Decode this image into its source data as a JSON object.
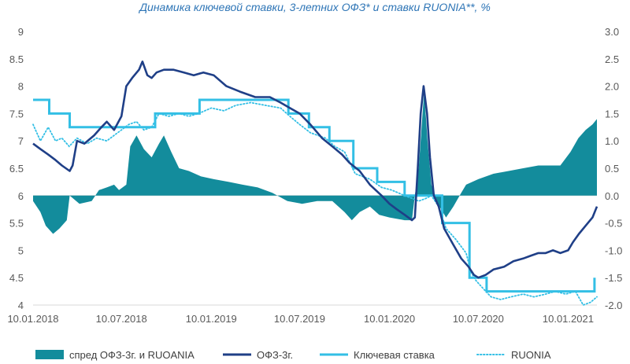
{
  "chart_data": {
    "type": "line",
    "title": "Динамика ключевой ставки, 3-летних ОФЗ* и ставки RUONIA**, %",
    "x_ticks": [
      "10.01.2018",
      "10.07.2018",
      "10.01.2019",
      "10.07.2019",
      "10.01.2020",
      "10.07.2020",
      "10.01.2021"
    ],
    "x_range": [
      "2018-01-10",
      "2021-03-10"
    ],
    "y_left": {
      "ticks": [
        "9",
        "8.5",
        "8",
        "7.5",
        "7",
        "6.5",
        "6",
        "5.5",
        "5",
        "4.5",
        "4"
      ],
      "range": [
        4,
        9
      ]
    },
    "y_right": {
      "ticks": [
        "3.0",
        "2.5",
        "2.0",
        "1.5",
        "1.0",
        "0.5",
        "0.0",
        "-0.5",
        "-1.0",
        "-1.5",
        "-2.0"
      ],
      "range": [
        -2,
        3
      ]
    },
    "legend_position": "bottom",
    "colors": {
      "spread": "#138c9c",
      "ofz": "#1f3f87",
      "key_rate": "#33bfe5",
      "ruonia": "#33bfe5"
    },
    "series": [
      {
        "name": "спред ОФЗ-3г. и RUOANIA",
        "axis": "right",
        "style": "area",
        "points": [
          [
            "2018-01-10",
            -0.1
          ],
          [
            "2018-01-25",
            -0.3
          ],
          [
            "2018-02-05",
            -0.55
          ],
          [
            "2018-02-20",
            -0.7
          ],
          [
            "2018-03-05",
            -0.6
          ],
          [
            "2018-03-20",
            -0.45
          ],
          [
            "2018-03-26",
            0.0
          ],
          [
            "2018-04-15",
            -0.15
          ],
          [
            "2018-05-10",
            -0.1
          ],
          [
            "2018-05-25",
            0.1
          ],
          [
            "2018-06-10",
            0.15
          ],
          [
            "2018-06-25",
            0.2
          ],
          [
            "2018-07-05",
            0.1
          ],
          [
            "2018-07-20",
            0.2
          ],
          [
            "2018-07-28",
            0.9
          ],
          [
            "2018-08-10",
            1.1
          ],
          [
            "2018-08-25",
            0.85
          ],
          [
            "2018-09-10",
            0.7
          ],
          [
            "2018-09-25",
            0.95
          ],
          [
            "2018-10-05",
            1.1
          ],
          [
            "2018-10-20",
            0.8
          ],
          [
            "2018-11-05",
            0.5
          ],
          [
            "2018-11-25",
            0.45
          ],
          [
            "2018-12-20",
            0.35
          ],
          [
            "2019-01-15",
            0.3
          ],
          [
            "2019-02-15",
            0.25
          ],
          [
            "2019-03-15",
            0.2
          ],
          [
            "2019-04-15",
            0.15
          ],
          [
            "2019-05-15",
            0.05
          ],
          [
            "2019-06-15",
            -0.1
          ],
          [
            "2019-07-15",
            -0.15
          ],
          [
            "2019-08-15",
            -0.1
          ],
          [
            "2019-09-15",
            -0.1
          ],
          [
            "2019-10-10",
            -0.3
          ],
          [
            "2019-10-25",
            -0.45
          ],
          [
            "2019-11-10",
            -0.3
          ],
          [
            "2019-12-01",
            -0.2
          ],
          [
            "2019-12-20",
            -0.35
          ],
          [
            "2020-01-10",
            -0.4
          ],
          [
            "2020-02-10",
            -0.45
          ],
          [
            "2020-02-25",
            -0.45
          ],
          [
            "2020-03-02",
            0.0
          ],
          [
            "2020-03-10",
            0.5
          ],
          [
            "2020-03-17",
            1.4
          ],
          [
            "2020-03-21",
            1.9
          ],
          [
            "2020-03-28",
            1.0
          ],
          [
            "2020-04-05",
            0.2
          ],
          [
            "2020-04-15",
            -0.1
          ],
          [
            "2020-04-25",
            -0.25
          ],
          [
            "2020-05-05",
            -0.4
          ],
          [
            "2020-05-20",
            -0.2
          ],
          [
            "2020-06-05",
            0.05
          ],
          [
            "2020-06-15",
            0.2
          ],
          [
            "2020-07-10",
            0.3
          ],
          [
            "2020-08-10",
            0.4
          ],
          [
            "2020-09-10",
            0.45
          ],
          [
            "2020-10-10",
            0.5
          ],
          [
            "2020-11-10",
            0.55
          ],
          [
            "2020-12-10",
            0.55
          ],
          [
            "2020-12-25",
            0.55
          ],
          [
            "2021-01-15",
            0.8
          ],
          [
            "2021-01-31",
            1.05
          ],
          [
            "2021-02-15",
            1.2
          ],
          [
            "2021-03-01",
            1.3
          ],
          [
            "2021-03-10",
            1.4
          ]
        ]
      },
      {
        "name": "ОФЗ-3г.",
        "axis": "left",
        "style": "line",
        "points": [
          [
            "2018-01-10",
            6.95
          ],
          [
            "2018-01-25",
            6.85
          ],
          [
            "2018-02-10",
            6.75
          ],
          [
            "2018-02-25",
            6.65
          ],
          [
            "2018-03-10",
            6.55
          ],
          [
            "2018-03-26",
            6.45
          ],
          [
            "2018-04-01",
            6.55
          ],
          [
            "2018-04-10",
            7.0
          ],
          [
            "2018-04-25",
            6.95
          ],
          [
            "2018-05-15",
            7.1
          ],
          [
            "2018-05-30",
            7.25
          ],
          [
            "2018-06-10",
            7.35
          ],
          [
            "2018-06-25",
            7.2
          ],
          [
            "2018-07-10",
            7.45
          ],
          [
            "2018-07-20",
            8.0
          ],
          [
            "2018-08-01",
            8.15
          ],
          [
            "2018-08-15",
            8.3
          ],
          [
            "2018-08-22",
            8.45
          ],
          [
            "2018-09-01",
            8.2
          ],
          [
            "2018-09-10",
            8.15
          ],
          [
            "2018-09-20",
            8.25
          ],
          [
            "2018-10-05",
            8.3
          ],
          [
            "2018-10-25",
            8.3
          ],
          [
            "2018-11-15",
            8.25
          ],
          [
            "2018-12-05",
            8.2
          ],
          [
            "2018-12-25",
            8.25
          ],
          [
            "2019-01-15",
            8.2
          ],
          [
            "2019-02-10",
            8.0
          ],
          [
            "2019-03-10",
            7.9
          ],
          [
            "2019-04-10",
            7.8
          ],
          [
            "2019-05-10",
            7.8
          ],
          [
            "2019-06-01",
            7.7
          ],
          [
            "2019-06-20",
            7.6
          ],
          [
            "2019-07-10",
            7.5
          ],
          [
            "2019-08-01",
            7.3
          ],
          [
            "2019-08-25",
            7.05
          ],
          [
            "2019-09-15",
            6.9
          ],
          [
            "2019-10-05",
            6.75
          ],
          [
            "2019-10-20",
            6.6
          ],
          [
            "2019-11-10",
            6.45
          ],
          [
            "2019-12-01",
            6.2
          ],
          [
            "2019-12-25",
            6.0
          ],
          [
            "2020-01-10",
            5.85
          ],
          [
            "2020-01-25",
            5.75
          ],
          [
            "2020-02-10",
            5.65
          ],
          [
            "2020-02-25",
            5.55
          ],
          [
            "2020-03-02",
            5.6
          ],
          [
            "2020-03-08",
            6.5
          ],
          [
            "2020-03-14",
            7.5
          ],
          [
            "2020-03-20",
            8.0
          ],
          [
            "2020-03-27",
            7.5
          ],
          [
            "2020-04-02",
            6.7
          ],
          [
            "2020-04-10",
            6.0
          ],
          [
            "2020-04-20",
            5.8
          ],
          [
            "2020-05-01",
            5.4
          ],
          [
            "2020-05-20",
            5.1
          ],
          [
            "2020-06-05",
            4.85
          ],
          [
            "2020-06-20",
            4.7
          ],
          [
            "2020-07-01",
            4.55
          ],
          [
            "2020-07-10",
            4.5
          ],
          [
            "2020-07-25",
            4.55
          ],
          [
            "2020-08-10",
            4.65
          ],
          [
            "2020-09-01",
            4.7
          ],
          [
            "2020-09-20",
            4.8
          ],
          [
            "2020-10-10",
            4.85
          ],
          [
            "2020-10-25",
            4.9
          ],
          [
            "2020-11-10",
            4.95
          ],
          [
            "2020-11-25",
            4.95
          ],
          [
            "2020-12-10",
            5.0
          ],
          [
            "2020-12-25",
            4.95
          ],
          [
            "2021-01-10",
            5.0
          ],
          [
            "2021-01-20",
            5.15
          ],
          [
            "2021-02-01",
            5.3
          ],
          [
            "2021-02-15",
            5.45
          ],
          [
            "2021-03-01",
            5.6
          ],
          [
            "2021-03-10",
            5.8
          ]
        ]
      },
      {
        "name": "Ключевая ставка",
        "axis": "left",
        "style": "step",
        "points": [
          [
            "2018-01-10",
            7.75
          ],
          [
            "2018-02-12",
            7.5
          ],
          [
            "2018-03-26",
            7.25
          ],
          [
            "2018-09-17",
            7.5
          ],
          [
            "2018-12-17",
            7.75
          ],
          [
            "2019-06-17",
            7.5
          ],
          [
            "2019-07-29",
            7.25
          ],
          [
            "2019-09-09",
            7.0
          ],
          [
            "2019-10-28",
            6.5
          ],
          [
            "2019-12-16",
            6.25
          ],
          [
            "2020-02-10",
            6.0
          ],
          [
            "2020-04-27",
            5.5
          ],
          [
            "2020-06-22",
            4.5
          ],
          [
            "2020-07-27",
            4.25
          ],
          [
            "2021-03-03",
            4.25
          ],
          [
            "2021-03-05",
            4.5
          ]
        ]
      },
      {
        "name": "RUONIA",
        "axis": "left",
        "style": "dotted",
        "points": [
          [
            "2018-01-10",
            7.3
          ],
          [
            "2018-01-25",
            7.0
          ],
          [
            "2018-02-10",
            7.25
          ],
          [
            "2018-02-25",
            7.0
          ],
          [
            "2018-03-10",
            7.05
          ],
          [
            "2018-03-25",
            6.9
          ],
          [
            "2018-04-10",
            7.05
          ],
          [
            "2018-05-01",
            6.95
          ],
          [
            "2018-05-20",
            7.05
          ],
          [
            "2018-06-10",
            7.0
          ],
          [
            "2018-06-25",
            7.1
          ],
          [
            "2018-07-10",
            7.2
          ],
          [
            "2018-07-25",
            7.3
          ],
          [
            "2018-08-10",
            7.35
          ],
          [
            "2018-08-25",
            7.2
          ],
          [
            "2018-09-10",
            7.25
          ],
          [
            "2018-09-25",
            7.5
          ],
          [
            "2018-10-15",
            7.45
          ],
          [
            "2018-11-05",
            7.5
          ],
          [
            "2018-11-25",
            7.45
          ],
          [
            "2018-12-15",
            7.5
          ],
          [
            "2019-01-10",
            7.6
          ],
          [
            "2019-02-05",
            7.55
          ],
          [
            "2019-03-01",
            7.65
          ],
          [
            "2019-04-01",
            7.7
          ],
          [
            "2019-05-01",
            7.65
          ],
          [
            "2019-06-01",
            7.6
          ],
          [
            "2019-06-20",
            7.45
          ],
          [
            "2019-07-10",
            7.3
          ],
          [
            "2019-08-01",
            7.15
          ],
          [
            "2019-09-01",
            7.05
          ],
          [
            "2019-09-20",
            6.9
          ],
          [
            "2019-10-10",
            6.8
          ],
          [
            "2019-11-01",
            6.4
          ],
          [
            "2019-12-01",
            6.3
          ],
          [
            "2019-12-25",
            6.15
          ],
          [
            "2020-01-15",
            6.1
          ],
          [
            "2020-02-10",
            6.0
          ],
          [
            "2020-02-25",
            5.95
          ],
          [
            "2020-03-10",
            5.9
          ],
          [
            "2020-03-25",
            5.95
          ],
          [
            "2020-04-05",
            6.0
          ],
          [
            "2020-04-20",
            5.8
          ],
          [
            "2020-05-05",
            5.4
          ],
          [
            "2020-05-25",
            5.2
          ],
          [
            "2020-06-15",
            4.95
          ],
          [
            "2020-06-25",
            4.6
          ],
          [
            "2020-07-05",
            4.45
          ],
          [
            "2020-07-20",
            4.3
          ],
          [
            "2020-08-05",
            4.15
          ],
          [
            "2020-08-25",
            4.1
          ],
          [
            "2020-09-15",
            4.15
          ],
          [
            "2020-10-10",
            4.2
          ],
          [
            "2020-11-01",
            4.15
          ],
          [
            "2020-11-25",
            4.2
          ],
          [
            "2020-12-15",
            4.25
          ],
          [
            "2021-01-05",
            4.2
          ],
          [
            "2021-01-25",
            4.25
          ],
          [
            "2021-02-10",
            4.0
          ],
          [
            "2021-02-25",
            4.05
          ],
          [
            "2021-03-10",
            4.15
          ]
        ]
      }
    ]
  }
}
